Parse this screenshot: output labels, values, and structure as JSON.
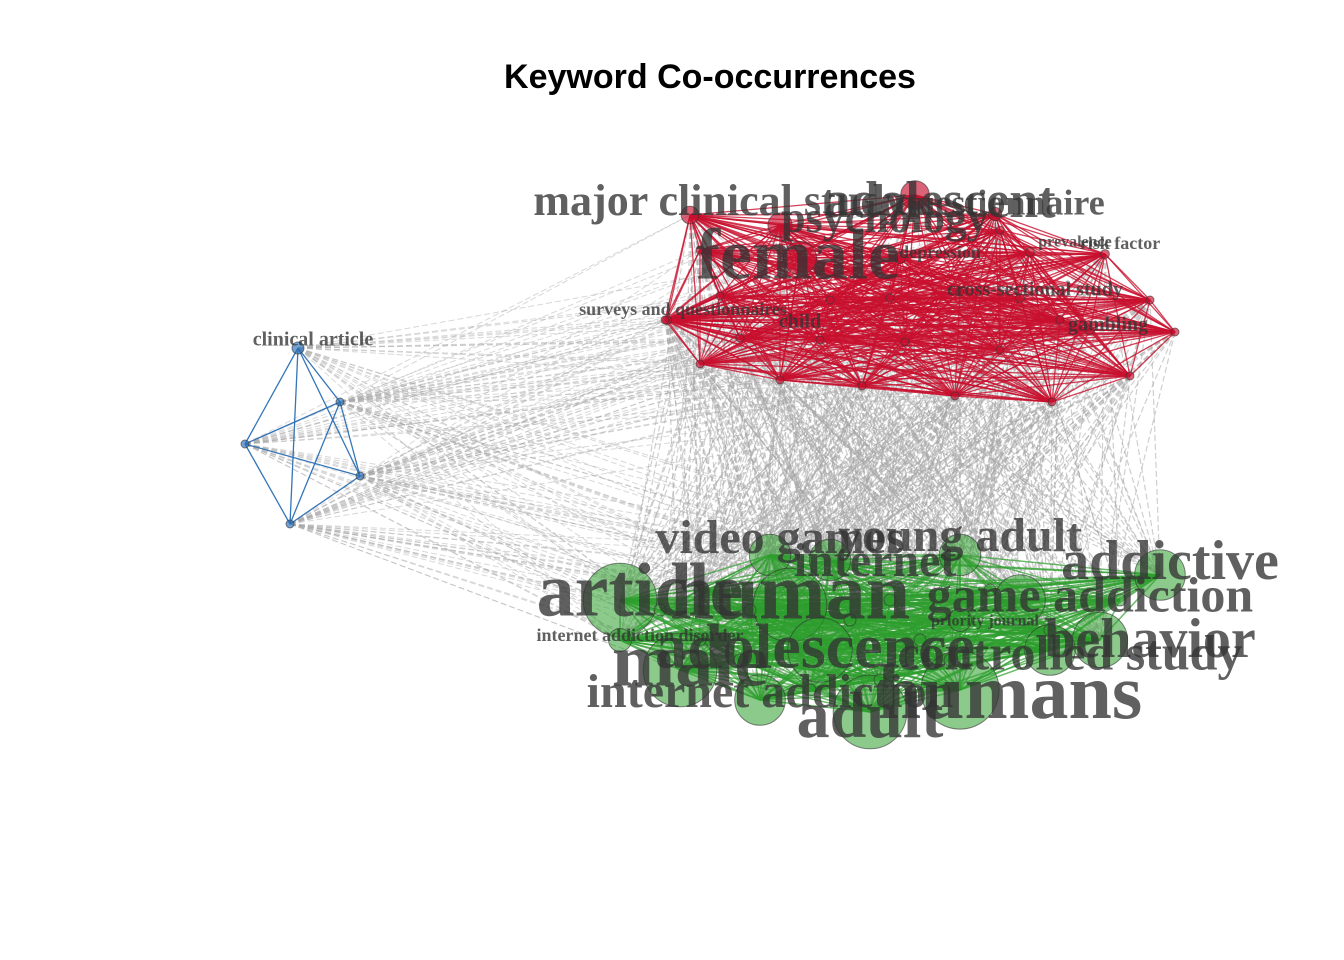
{
  "title": "Keyword Co-occurrences",
  "colors": {
    "cluster_red": "#C8102E",
    "cluster_green": "#2E9E2E",
    "cluster_blue": "#2A6EB5",
    "between_edges": "#A8A8A8",
    "label_text": "#333333"
  },
  "clusters": [
    {
      "id": "red",
      "nodes": [
        {
          "label": "adolescent",
          "size": 26
        },
        {
          "label": "psychology",
          "size": 22
        },
        {
          "label": "major clinical study",
          "size": 16
        },
        {
          "label": "questionnaire",
          "size": 12
        },
        {
          "label": "female",
          "size": 30
        },
        {
          "label": "depression",
          "size": 10
        },
        {
          "label": "prevalence",
          "size": 8
        },
        {
          "label": "risk factor",
          "size": 8
        },
        {
          "label": "cross-sectional study",
          "size": 8
        },
        {
          "label": "surveys and questionnaires",
          "size": 8
        },
        {
          "label": "child",
          "size": 8
        },
        {
          "label": "gambling",
          "size": 8
        }
      ]
    },
    {
      "id": "green",
      "nodes": [
        {
          "label": "video games",
          "size": 18
        },
        {
          "label": "young adult",
          "size": 18
        },
        {
          "label": "internet",
          "size": 18
        },
        {
          "label": "addictive",
          "size": 22
        },
        {
          "label": "article",
          "size": 32
        },
        {
          "label": "human",
          "size": 32
        },
        {
          "label": "game addiction",
          "size": 22
        },
        {
          "label": "priority journal",
          "size": 10
        },
        {
          "label": "behavior",
          "size": 24
        },
        {
          "label": "internet addiction disorder",
          "size": 10
        },
        {
          "label": "male",
          "size": 32
        },
        {
          "label": "adolescence",
          "size": 28
        },
        {
          "label": "controlled study",
          "size": 22
        },
        {
          "label": "internet addiction",
          "size": 22
        },
        {
          "label": "humans",
          "size": 34
        },
        {
          "label": "adult",
          "size": 32
        }
      ]
    },
    {
      "id": "blue",
      "nodes": [
        {
          "label": "clinical article",
          "size": 8
        }
      ]
    }
  ]
}
